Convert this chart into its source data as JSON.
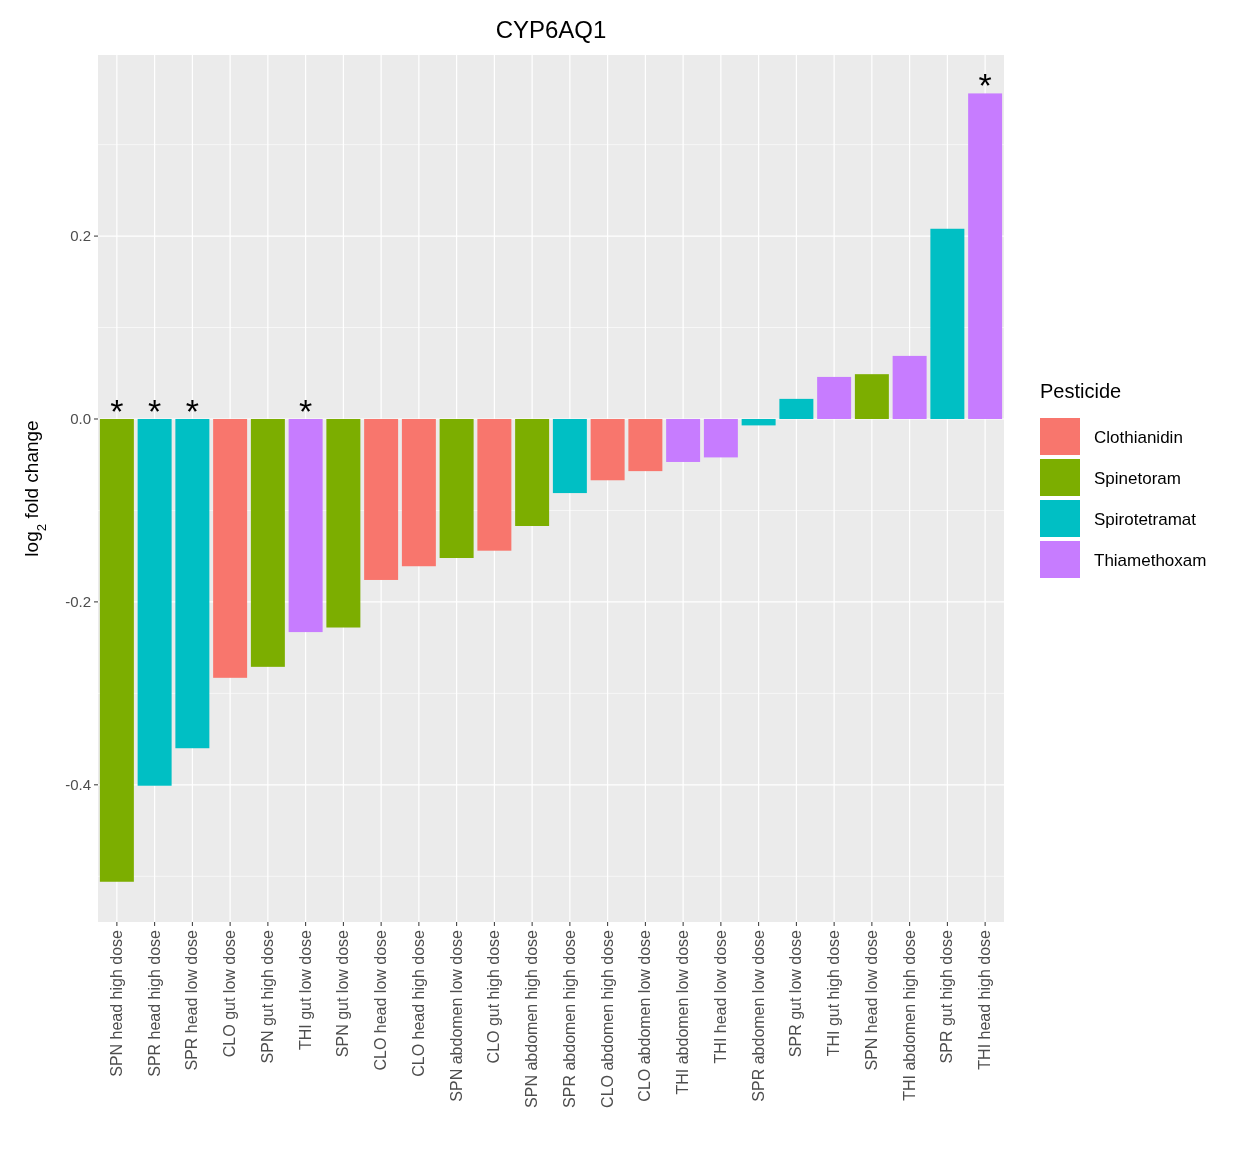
{
  "chart_data": {
    "type": "bar",
    "title": "CYP6AQ1",
    "ylabel": "log$_{2}$ fold change",
    "legend_title": "Pesticide",
    "categories": [
      "SPN head high dose",
      "SPR head high dose",
      "SPR head low dose",
      "CLO gut low dose",
      "SPN gut high dose",
      "THI gut low dose",
      "SPN gut low dose",
      "CLO head low dose",
      "CLO head high dose",
      "SPN abdomen low dose",
      "CLO gut high dose",
      "SPN abdomen high dose",
      "SPR abdomen high dose",
      "CLO abdomen high dose",
      "CLO abdomen low dose",
      "THI abdomen low dose",
      "THI head low dose",
      "SPR abdomen low dose",
      "SPR gut low dose",
      "THI gut high dose",
      "SPN head low dose",
      "THI abdomen high dose",
      "SPR gut high dose",
      "THI head high dose"
    ],
    "series": [
      {
        "name": "Clothianidin",
        "color": "#f8766d",
        "values": [
          null,
          null,
          null,
          -0.283,
          null,
          null,
          null,
          -0.176,
          -0.161,
          null,
          -0.144,
          null,
          null,
          -0.067,
          -0.057,
          null,
          null,
          null,
          null,
          null,
          null,
          null,
          null,
          null
        ]
      },
      {
        "name": "Spinetoram",
        "color": "#7cae00",
        "values": [
          -0.506,
          null,
          null,
          null,
          -0.271,
          null,
          -0.228,
          null,
          null,
          -0.152,
          null,
          -0.117,
          null,
          null,
          null,
          null,
          null,
          null,
          null,
          null,
          0.049,
          null,
          null,
          null
        ]
      },
      {
        "name": "Spirotetramat",
        "color": "#00bfc4",
        "values": [
          null,
          -0.401,
          -0.36,
          null,
          null,
          null,
          null,
          null,
          null,
          null,
          null,
          null,
          -0.081,
          null,
          null,
          null,
          null,
          -0.007,
          0.022,
          null,
          null,
          null,
          0.208,
          null
        ]
      },
      {
        "name": "Thiamethoxam",
        "color": "#c77cff",
        "values": [
          null,
          null,
          null,
          null,
          null,
          -0.233,
          null,
          null,
          null,
          null,
          null,
          null,
          null,
          null,
          null,
          -0.047,
          -0.042,
          null,
          null,
          0.046,
          null,
          0.069,
          null,
          0.356
        ]
      }
    ],
    "ylim": [
      -0.55,
      0.398
    ],
    "yticks": [
      -0.4,
      -0.2,
      {
        "value": 0,
        "label": "0.0"
      },
      0.2
    ],
    "grid": true,
    "legend": "right",
    "annotations": [
      {
        "text": "*",
        "x": "SPN head high dose",
        "y": 0
      },
      {
        "text": "*",
        "x": "SPR head high dose",
        "y": 0
      },
      {
        "text": "*",
        "x": "SPR head low dose",
        "y": 0
      },
      {
        "text": "*",
        "x": "THI gut low dose",
        "y": 0
      },
      {
        "text": "*",
        "x": "THI head high dose",
        "y": 0.356
      }
    ]
  }
}
